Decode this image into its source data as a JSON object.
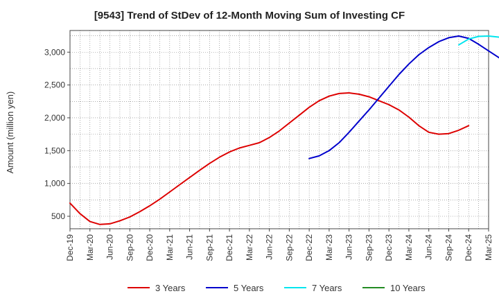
{
  "chart_data": {
    "type": "line",
    "title": "[9543]  Trend of StDev of 12-Month Moving Sum of Investing CF",
    "ylabel": "Amount (million yen)",
    "xlabel": "",
    "x_ticks": [
      "Dec-19",
      "Mar-20",
      "Jun-20",
      "Sep-20",
      "Dec-20",
      "Mar-21",
      "Jun-21",
      "Sep-21",
      "Dec-21",
      "Mar-22",
      "Jun-22",
      "Sep-22",
      "Dec-22",
      "Mar-23",
      "Jun-23",
      "Sep-23",
      "Dec-23",
      "Mar-24",
      "Jun-24",
      "Sep-24",
      "Dec-24",
      "Mar-25"
    ],
    "y_ticks": [
      "500",
      "1,000",
      "1,500",
      "2,000",
      "2,500",
      "3,000"
    ],
    "y_tick_values": [
      500,
      1000,
      1500,
      2000,
      2500,
      3000
    ],
    "ylim": [
      310,
      3330
    ],
    "grid": true,
    "legend_position": "bottom",
    "series": [
      {
        "name": "3 Years",
        "color": "#dd0000",
        "start_index": 0,
        "values": [
          700,
          540,
          420,
          375,
          385,
          430,
          490,
          570,
          660,
          760,
          870,
          980,
          1090,
          1200,
          1305,
          1400,
          1480,
          1540,
          1580,
          1620,
          1700,
          1800,
          1920,
          2040,
          2160,
          2260,
          2330,
          2370,
          2380,
          2360,
          2320,
          2260,
          2200,
          2120,
          2010,
          1880,
          1780,
          1750,
          1760,
          1810,
          1880
        ]
      },
      {
        "name": "5 Years",
        "color": "#0000cc",
        "start_index": 24,
        "values": [
          1380,
          1420,
          1500,
          1620,
          1780,
          1950,
          2120,
          2300,
          2480,
          2660,
          2820,
          2960,
          3070,
          3160,
          3220,
          3245,
          3210,
          3120,
          3020,
          2920,
          2820,
          2720,
          2620
        ]
      },
      {
        "name": "7 Years",
        "color": "#00e5ee",
        "start_index": 39,
        "values": [
          3110,
          3200,
          3240,
          3245,
          3230,
          3210,
          3190,
          3160,
          3140
        ]
      },
      {
        "name": "10 Years",
        "color": "#228b22",
        "start_index": 0,
        "values": []
      }
    ]
  }
}
